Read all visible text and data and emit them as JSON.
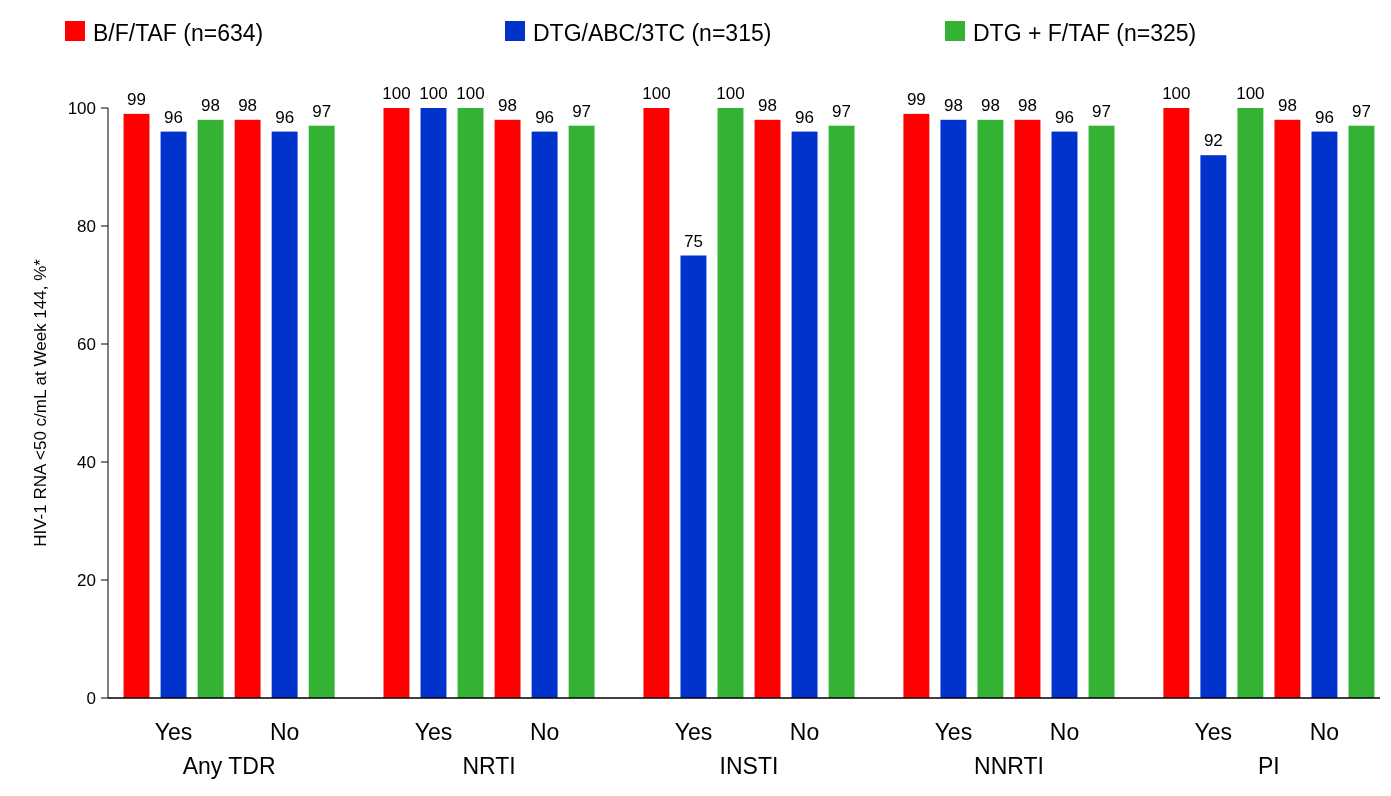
{
  "chart_data": {
    "type": "bar",
    "ylabel": "HIV-1 RNA <50 c/mL at Week 144, %*",
    "categories": [
      "Yes",
      "No",
      "Yes",
      "No",
      "Yes",
      "No",
      "Yes",
      "No",
      "Yes",
      "No"
    ],
    "annotations": [
      "Any TDR",
      "NRTI",
      "INSTI",
      "NNRTI",
      "PI"
    ],
    "series": [
      {
        "name": "B/F/TAF (n=634)",
        "color": "#ff0000",
        "values": [
          99,
          98,
          100,
          98,
          100,
          98,
          99,
          98,
          100,
          98
        ]
      },
      {
        "name": "DTG/ABC/3TC (n=315)",
        "color": "#0033cc",
        "values": [
          96,
          96,
          100,
          96,
          75,
          96,
          98,
          96,
          92,
          96
        ]
      },
      {
        "name": "DTG + F/TAF (n=325)",
        "color": "#33b233",
        "values": [
          98,
          97,
          100,
          97,
          100,
          97,
          98,
          97,
          100,
          97
        ]
      }
    ],
    "ylim": [
      0,
      100
    ],
    "yticks": [
      0,
      20,
      40,
      60,
      80,
      100
    ],
    "grid": false,
    "legend": "top",
    "data_labels": true
  }
}
